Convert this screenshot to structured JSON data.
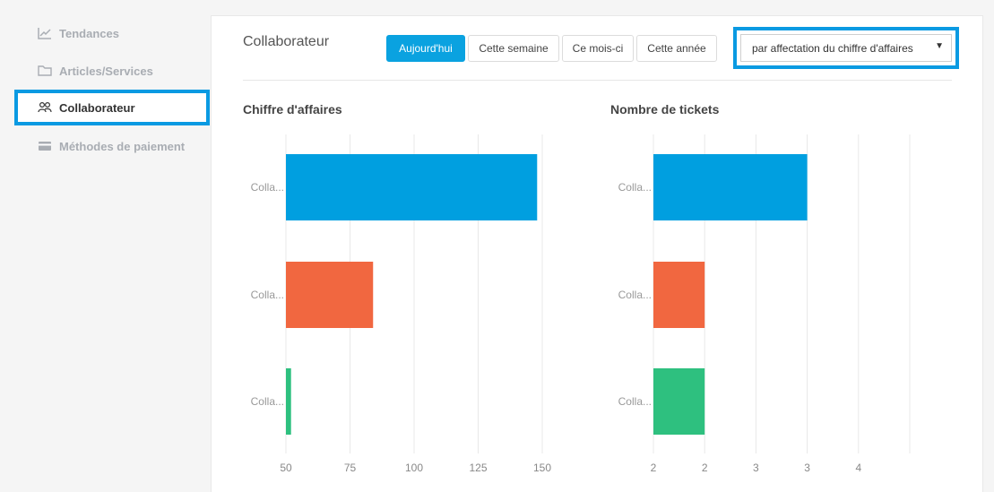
{
  "sidebar": {
    "items": [
      {
        "label": "Tendances",
        "icon": "trend-icon"
      },
      {
        "label": "Articles/Services",
        "icon": "folder-icon"
      },
      {
        "label": "Collaborateur",
        "icon": "users-icon",
        "active": true
      },
      {
        "label": "Méthodes de paiement",
        "icon": "credit-card-icon"
      }
    ]
  },
  "header": {
    "title": "Collaborateur",
    "ranges": [
      {
        "label": "Aujourd'hui",
        "active": true
      },
      {
        "label": "Cette semaine"
      },
      {
        "label": "Ce mois-ci"
      },
      {
        "label": "Cette année"
      }
    ],
    "select": {
      "value": "par affectation du chiffre d'affaires"
    }
  },
  "colors": {
    "accent": "#0aa2e0",
    "series": [
      "#009fe0",
      "#f16740",
      "#2ec07f"
    ]
  },
  "chart_data": [
    {
      "type": "bar",
      "orientation": "horizontal",
      "title": "Chiffre d'affaires",
      "categories": [
        "Colla...",
        "Colla...",
        "Colla..."
      ],
      "values": [
        148,
        84,
        52
      ],
      "xlim": [
        50,
        150
      ],
      "xticks": [
        50,
        75,
        100,
        125,
        150
      ],
      "xtick_labels": [
        "50",
        "75",
        "100",
        "125",
        "150"
      ],
      "grid": true,
      "legend": "none"
    },
    {
      "type": "bar",
      "orientation": "horizontal",
      "title": "Nombre de tickets",
      "categories": [
        "Colla...",
        "Colla...",
        "Colla..."
      ],
      "values": [
        3,
        2,
        2
      ],
      "xlim": [
        1.5,
        4
      ],
      "xticks": [
        1.5,
        2,
        2.5,
        3,
        3.5,
        4
      ],
      "xtick_labels": [
        "2",
        "2",
        "3",
        "3",
        "4",
        ""
      ],
      "grid": true,
      "legend": "none"
    }
  ]
}
